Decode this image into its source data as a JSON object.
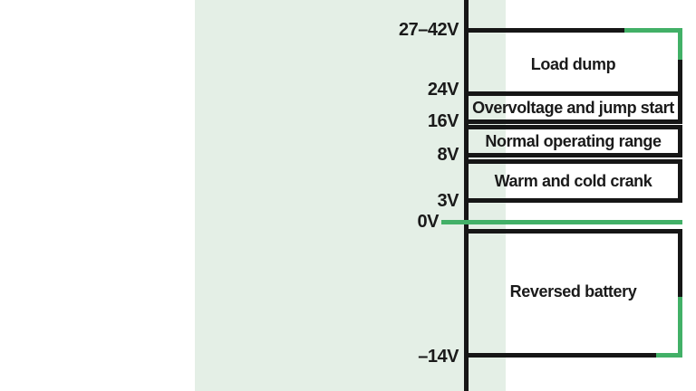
{
  "figure": {
    "colors": {
      "panel_background": "#e4efe6",
      "page_background": "#ffffff",
      "line_black": "#161616",
      "accent_green": "#42b067",
      "text": "#1a1a1a"
    },
    "axis": {
      "ticks": [
        {
          "label": "27–42V"
        },
        {
          "label": "24V"
        },
        {
          "label": "16V"
        },
        {
          "label": "8V"
        },
        {
          "label": "3V"
        },
        {
          "label": "0V"
        },
        {
          "label": "–14V"
        }
      ]
    },
    "regions": [
      {
        "label": "Load dump",
        "from": "24V",
        "to": "27–42V"
      },
      {
        "label": "Overvoltage and jump start",
        "from": "16V",
        "to": "24V"
      },
      {
        "label": "Normal operating range",
        "from": "8V",
        "to": "16V"
      },
      {
        "label": "Warm and cold crank",
        "from": "3V",
        "to": "8V"
      },
      {
        "label": "Reversed battery",
        "from": "–14V",
        "to": "0V"
      }
    ]
  }
}
